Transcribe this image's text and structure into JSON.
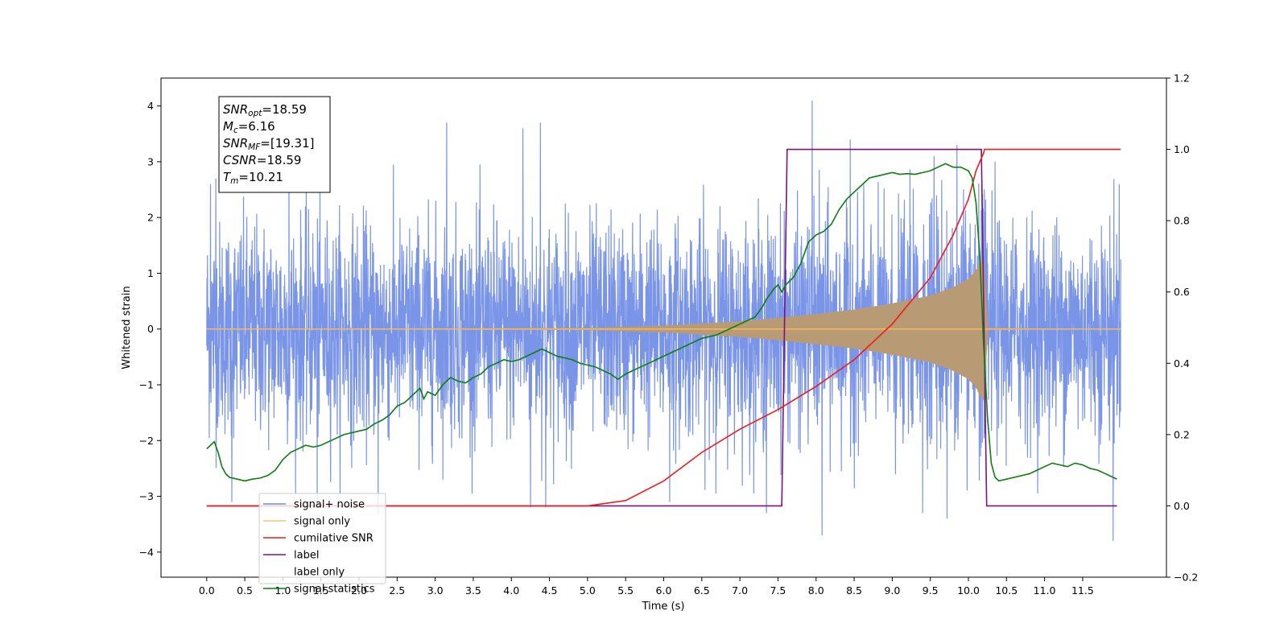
{
  "chart_data": {
    "type": "line",
    "xlabel": "Time (s)",
    "ylabel": "Whitened strain",
    "xlim": [
      -0.6,
      12.6
    ],
    "ylim": [
      -4.45,
      4.5
    ],
    "y2lim": [
      -0.2,
      1.2
    ],
    "x_ticks": [
      0.0,
      0.5,
      1.0,
      1.5,
      2.0,
      2.5,
      3.0,
      3.5,
      4.0,
      4.5,
      5.0,
      5.5,
      6.0,
      6.5,
      7.0,
      7.5,
      8.0,
      8.5,
      9.0,
      9.5,
      10.0,
      10.5,
      11.0,
      11.5
    ],
    "x_tick_labels": [
      "0.0",
      "0.5",
      "1.0",
      "1.5",
      "2.0",
      "2.5",
      "3.0",
      "3.5",
      "4.0",
      "4.5",
      "5.0",
      "5.5",
      "6.0",
      "6.5",
      "7.0",
      "7.5",
      "8.0",
      "8.5",
      "9.0",
      "9.5",
      "10.0",
      "10.5",
      "11.0",
      "11.5"
    ],
    "y_ticks": [
      -4,
      -3,
      -2,
      -1,
      0,
      1,
      2,
      3,
      4
    ],
    "y_tick_labels": [
      "−4",
      "−3",
      "−2",
      "−1",
      "0",
      "1",
      "2",
      "3",
      "4"
    ],
    "y2_ticks": [
      -0.2,
      0.0,
      0.2,
      0.4,
      0.6,
      0.8,
      1.0,
      1.2
    ],
    "y2_tick_labels": [
      "−0.2",
      "0.0",
      "0.2",
      "0.4",
      "0.6",
      "0.8",
      "1.0",
      "1.2"
    ],
    "grid": false,
    "legend_position": "lower-left",
    "annotation": {
      "lines": [
        {
          "main": "SNR",
          "sub": "opt",
          "rest": "=18.59"
        },
        {
          "main": "M",
          "sub": "c",
          "rest": "=6.16"
        },
        {
          "main": "SNR",
          "sub": "MF",
          "rest": "=[19.31]"
        },
        {
          "main": "CSNR",
          "sub": "",
          "rest": "=18.59"
        },
        {
          "main": "T",
          "sub": "m",
          "rest": "=10.21"
        }
      ]
    },
    "series": [
      {
        "name": "signal+ noise",
        "axis": "left",
        "color": "#6f8ce6",
        "kind": "noise_envelope",
        "x_range": [
          0.0,
          12.0
        ],
        "noise_sigma": 0.95,
        "spikes": [
          {
            "x": 0.05,
            "y": 2.6
          },
          {
            "x": 0.12,
            "y": 2.7
          },
          {
            "x": 0.33,
            "y": -3.1
          },
          {
            "x": 1.08,
            "y": 3.0
          },
          {
            "x": 1.45,
            "y": -3.2
          },
          {
            "x": 2.25,
            "y": -3.3
          },
          {
            "x": 3.15,
            "y": 3.7
          },
          {
            "x": 4.15,
            "y": 3.6
          },
          {
            "x": 4.25,
            "y": -3.2
          },
          {
            "x": 4.38,
            "y": 3.7
          },
          {
            "x": 4.45,
            "y": -3.2
          },
          {
            "x": 6.08,
            "y": -3.1
          },
          {
            "x": 7.35,
            "y": -3.3
          },
          {
            "x": 7.95,
            "y": 4.1
          },
          {
            "x": 8.08,
            "y": -3.7
          },
          {
            "x": 8.45,
            "y": 3.4
          },
          {
            "x": 9.4,
            "y": -3.3
          },
          {
            "x": 9.55,
            "y": 3.1
          },
          {
            "x": 9.72,
            "y": -3.4
          },
          {
            "x": 9.85,
            "y": 3.3
          },
          {
            "x": 10.35,
            "y": 3.0
          },
          {
            "x": 11.9,
            "y": -3.8
          },
          {
            "x": 11.98,
            "y": 2.6
          }
        ]
      },
      {
        "name": "signal only",
        "axis": "left",
        "color": "#f5b860",
        "fill_color": "#b89b74",
        "kind": "chirp_envelope",
        "envelope": [
          [
            0.0,
            0.0
          ],
          [
            5.0,
            0.02
          ],
          [
            6.0,
            0.06
          ],
          [
            7.0,
            0.14
          ],
          [
            7.5,
            0.2
          ],
          [
            8.0,
            0.27
          ],
          [
            8.5,
            0.35
          ],
          [
            9.0,
            0.46
          ],
          [
            9.5,
            0.6
          ],
          [
            9.8,
            0.75
          ],
          [
            10.0,
            0.9
          ],
          [
            10.1,
            1.05
          ],
          [
            10.15,
            1.2
          ],
          [
            10.21,
            1.3
          ],
          [
            10.25,
            0.02
          ],
          [
            12.0,
            0.0
          ]
        ]
      },
      {
        "name": "cumilative SNR",
        "axis": "right",
        "color": "#ee1c1c",
        "x": [
          0.0,
          5.0,
          5.5,
          6.0,
          6.5,
          7.0,
          7.5,
          8.0,
          8.5,
          9.0,
          9.5,
          9.8,
          10.0,
          10.1,
          10.2,
          10.21,
          12.0
        ],
        "y": [
          0.0,
          0.0,
          0.015,
          0.07,
          0.15,
          0.215,
          0.27,
          0.335,
          0.41,
          0.51,
          0.64,
          0.76,
          0.86,
          0.94,
          0.99,
          1.0,
          1.0
        ]
      },
      {
        "name": "label",
        "axis": "right",
        "color": "#7b137b",
        "x": [
          0.0,
          7.55,
          7.62,
          10.17,
          10.24,
          11.95
        ],
        "y": [
          0.0,
          0.0,
          1.0,
          1.0,
          0.0,
          0.0
        ]
      },
      {
        "name": "label only",
        "axis": "right",
        "color": "#7b137b",
        "hidden_line": true,
        "x": [],
        "y": []
      },
      {
        "name": "signal statistics",
        "axis": "right",
        "color": "#0e7d0e",
        "x": [
          0.0,
          0.1,
          0.15,
          0.2,
          0.25,
          0.3,
          0.4,
          0.5,
          0.6,
          0.7,
          0.8,
          0.9,
          1.0,
          1.1,
          1.2,
          1.3,
          1.4,
          1.5,
          1.6,
          1.7,
          1.8,
          1.9,
          2.0,
          2.1,
          2.2,
          2.3,
          2.4,
          2.5,
          2.6,
          2.7,
          2.8,
          2.85,
          2.9,
          3.0,
          3.1,
          3.2,
          3.3,
          3.4,
          3.5,
          3.6,
          3.7,
          3.8,
          3.9,
          4.0,
          4.1,
          4.2,
          4.3,
          4.4,
          4.5,
          4.6,
          4.7,
          4.8,
          4.9,
          5.0,
          5.1,
          5.2,
          5.3,
          5.4,
          5.5,
          5.6,
          5.7,
          5.8,
          5.9,
          6.0,
          6.1,
          6.2,
          6.3,
          6.4,
          6.5,
          6.6,
          6.7,
          6.8,
          6.9,
          7.0,
          7.1,
          7.2,
          7.3,
          7.35,
          7.45,
          7.5,
          7.55,
          7.6,
          7.7,
          7.8,
          7.9,
          8.0,
          8.1,
          8.2,
          8.3,
          8.4,
          8.5,
          8.6,
          8.7,
          8.8,
          8.9,
          9.0,
          9.1,
          9.2,
          9.3,
          9.4,
          9.5,
          9.6,
          9.7,
          9.8,
          9.9,
          10.0,
          10.05,
          10.1,
          10.15,
          10.2,
          10.25,
          10.3,
          10.35,
          10.4,
          10.5,
          10.6,
          10.7,
          10.8,
          10.9,
          11.0,
          11.1,
          11.2,
          11.3,
          11.4,
          11.5,
          11.6,
          11.7,
          11.8,
          11.9,
          11.95
        ],
        "y": [
          0.16,
          0.18,
          0.15,
          0.11,
          0.09,
          0.08,
          0.075,
          0.07,
          0.075,
          0.078,
          0.085,
          0.1,
          0.13,
          0.15,
          0.16,
          0.17,
          0.165,
          0.17,
          0.18,
          0.19,
          0.2,
          0.205,
          0.21,
          0.215,
          0.23,
          0.24,
          0.255,
          0.28,
          0.29,
          0.31,
          0.33,
          0.3,
          0.32,
          0.31,
          0.34,
          0.36,
          0.35,
          0.345,
          0.36,
          0.37,
          0.39,
          0.4,
          0.41,
          0.405,
          0.41,
          0.42,
          0.43,
          0.44,
          0.43,
          0.42,
          0.415,
          0.41,
          0.4,
          0.395,
          0.39,
          0.38,
          0.37,
          0.355,
          0.37,
          0.38,
          0.39,
          0.4,
          0.41,
          0.42,
          0.43,
          0.44,
          0.45,
          0.46,
          0.47,
          0.475,
          0.48,
          0.49,
          0.5,
          0.51,
          0.52,
          0.53,
          0.56,
          0.58,
          0.61,
          0.62,
          0.6,
          0.62,
          0.64,
          0.68,
          0.74,
          0.76,
          0.77,
          0.79,
          0.83,
          0.86,
          0.88,
          0.9,
          0.92,
          0.925,
          0.93,
          0.935,
          0.93,
          0.932,
          0.93,
          0.935,
          0.94,
          0.95,
          0.96,
          0.95,
          0.95,
          0.94,
          0.92,
          0.85,
          0.7,
          0.45,
          0.25,
          0.12,
          0.08,
          0.07,
          0.075,
          0.08,
          0.085,
          0.09,
          0.1,
          0.11,
          0.12,
          0.115,
          0.11,
          0.12,
          0.115,
          0.105,
          0.1,
          0.09,
          0.08,
          0.075
        ]
      }
    ]
  }
}
